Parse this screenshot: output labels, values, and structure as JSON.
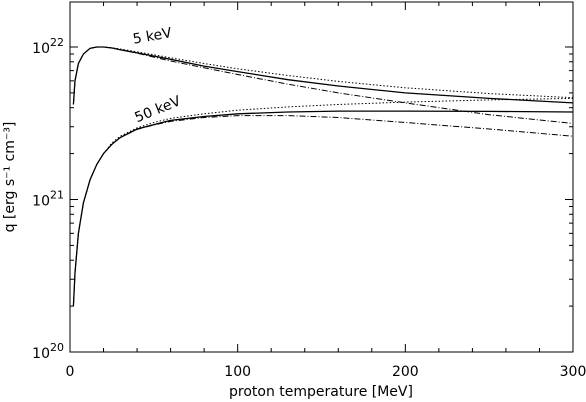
{
  "chart_data": {
    "type": "line",
    "xlabel": "proton temperature [MeV]",
    "ylabel": "q [erg s⁻¹ cm⁻³]",
    "xlim": [
      0,
      300
    ],
    "ylim": [
      1e+20,
      2e+22
    ],
    "yscale": "log",
    "xticks": [
      0,
      100,
      200,
      300
    ],
    "xtick_labels": [
      "0",
      "100",
      "200",
      "300"
    ],
    "yticks": [
      1e+20,
      1e+21,
      1e+22
    ],
    "ytick_labels": [
      {
        "base": "10",
        "exp": "20"
      },
      {
        "base": "10",
        "exp": "21"
      },
      {
        "base": "10",
        "exp": "22"
      }
    ],
    "grid": false,
    "annotations": [
      {
        "text": "5 keV",
        "x": 38,
        "y": 1.05e+22,
        "rotate": -10
      },
      {
        "text": "50 keV",
        "x": 40,
        "y": 3.2e+21,
        "rotate": -22
      }
    ],
    "series": [
      {
        "style": "solid",
        "x": [
          2,
          3,
          5,
          8,
          12,
          16,
          20,
          25,
          30,
          40,
          60,
          80,
          100,
          130,
          160,
          200,
          250,
          300
        ],
        "y": [
          4.2e+21,
          6e+21,
          7.8e+21,
          9e+21,
          9.8e+21,
          1e+22,
          1e+22,
          9.85e+21,
          9.6e+21,
          9.15e+21,
          8.3e+21,
          7.5e+21,
          6.9e+21,
          6.1e+21,
          5.55e+21,
          5e+21,
          4.6e+21,
          4.3e+21
        ]
      },
      {
        "style": "dotted",
        "x": [
          2,
          3,
          5,
          8,
          12,
          16,
          20,
          25,
          30,
          40,
          60,
          80,
          100,
          130,
          160,
          200,
          250,
          300
        ],
        "y": [
          4.2e+21,
          6e+21,
          7.8e+21,
          9e+21,
          9.8e+21,
          1e+22,
          1e+22,
          9.9e+21,
          9.7e+21,
          9.3e+21,
          8.5e+21,
          7.8e+21,
          7.2e+21,
          6.5e+21,
          5.95e+21,
          5.4e+21,
          4.95e+21,
          4.65e+21
        ]
      },
      {
        "style": "dashed",
        "x": [
          2,
          3,
          5,
          8,
          12,
          16,
          20,
          25,
          30,
          40,
          60,
          80,
          100,
          130,
          160,
          200,
          250,
          300
        ],
        "y": [
          4.2e+21,
          6e+21,
          7.8e+21,
          9e+21,
          9.8e+21,
          1e+22,
          1e+22,
          9.85e+21,
          9.6e+21,
          9.1e+21,
          8.1e+21,
          7.3e+21,
          6.6e+21,
          5.7e+21,
          5e+21,
          4.3e+21,
          3.6e+21,
          3.15e+21
        ]
      },
      {
        "style": "solid",
        "x": [
          2,
          3,
          5,
          8,
          12,
          16,
          20,
          25,
          30,
          40,
          50,
          60,
          80,
          100,
          130,
          160,
          200,
          250,
          300
        ],
        "y": [
          2e+20,
          3.3e+20,
          6e+20,
          9.5e+20,
          1.35e+21,
          1.7e+21,
          2e+21,
          2.3e+21,
          2.55e+21,
          2.9e+21,
          3.1e+21,
          3.3e+21,
          3.5e+21,
          3.65e+21,
          3.75e+21,
          3.8e+21,
          3.8e+21,
          3.78e+21,
          3.75e+21
        ]
      },
      {
        "style": "dotted",
        "x": [
          2,
          3,
          5,
          8,
          12,
          16,
          20,
          25,
          30,
          40,
          50,
          60,
          80,
          100,
          130,
          160,
          200,
          250,
          300
        ],
        "y": [
          2e+20,
          3.3e+20,
          6e+20,
          9.5e+20,
          1.35e+21,
          1.7e+21,
          2e+21,
          2.35e+21,
          2.6e+21,
          2.95e+21,
          3.2e+21,
          3.4e+21,
          3.65e+21,
          3.85e+21,
          4.05e+21,
          4.2e+21,
          4.35e+21,
          4.5e+21,
          4.6e+21
        ]
      },
      {
        "style": "dashed",
        "x": [
          2,
          3,
          5,
          8,
          12,
          16,
          20,
          25,
          30,
          40,
          50,
          60,
          80,
          100,
          130,
          160,
          200,
          250,
          300
        ],
        "y": [
          2e+20,
          3.3e+20,
          6e+20,
          9.5e+20,
          1.35e+21,
          1.7e+21,
          2e+21,
          2.3e+21,
          2.55e+21,
          2.88e+21,
          3.08e+21,
          3.25e+21,
          3.45e+21,
          3.55e+21,
          3.55e+21,
          3.45e+21,
          3.2e+21,
          2.9e+21,
          2.6e+21
        ]
      }
    ]
  }
}
